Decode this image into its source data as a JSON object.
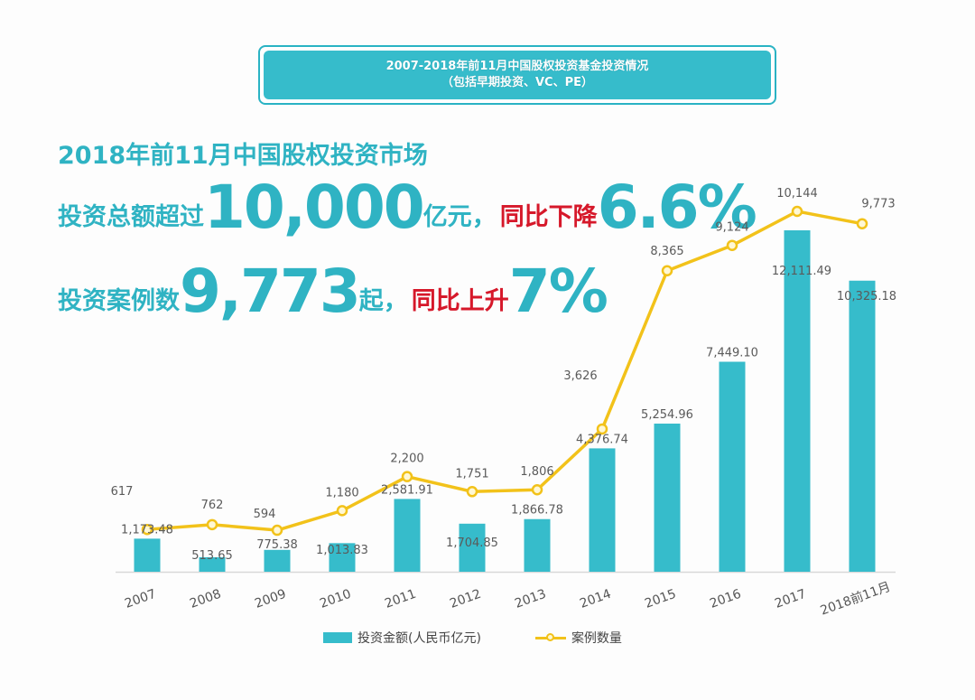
{
  "title_box": {
    "line1": "2007-2018年前11月中国股权投资基金投资情况",
    "line2": "（包括早期投资、VC、PE）"
  },
  "headline": {
    "line1": "2018年前11月中国股权投资市场",
    "amount_prefix": "投资总额超过",
    "amount_value": "10,000",
    "amount_unit": "亿元",
    "comma1": "，",
    "amount_change_label": "同比下降",
    "amount_change_value": "6.6%",
    "cases_prefix": "投资案例数",
    "cases_value": "9,773",
    "cases_unit": "起",
    "comma2": "，",
    "cases_change_label": "同比上升",
    "cases_change_value": "7%"
  },
  "legend": {
    "bar_label": "投资金额(人民币亿元)",
    "line_label": "案例数量"
  },
  "colors": {
    "bar": "#36bccb",
    "line": "#f2c21a",
    "headline_teal": "#2fb3c3",
    "headline_red": "#d6182a"
  },
  "chart_data": {
    "type": "bar",
    "categories": [
      "2007",
      "2008",
      "2009",
      "2010",
      "2011",
      "2012",
      "2013",
      "2014",
      "2015",
      "2016",
      "2017",
      "2018前11月"
    ],
    "series": [
      {
        "name": "投资金额(人民币亿元)",
        "type": "bar",
        "values": [
          1173.48,
          513.65,
          775.38,
          1013.83,
          2581.91,
          1704.85,
          1866.78,
          4376.74,
          5254.96,
          7449.1,
          12111.49,
          10325.18
        ],
        "labels": [
          "1,173.48",
          "513.65",
          "775.38",
          "1,013.83",
          "2,581.91",
          "1,704.85",
          "1,866.78",
          "4,376.74",
          "5,254.96",
          "7,449.10",
          "12,111.49",
          "10,325.18"
        ]
      },
      {
        "name": "案例数量",
        "type": "line",
        "values": [
          617,
          762,
          594,
          1180,
          2200,
          1751,
          1806,
          3626,
          8365,
          9124,
          10144,
          9773
        ],
        "labels": [
          "617",
          "762",
          "594",
          "1,180",
          "2,200",
          "1,751",
          "1,806",
          "3,626",
          "8,365",
          "9,124",
          "10,144",
          "9,773"
        ]
      }
    ],
    "legend_position": "bottom",
    "grid": false
  }
}
